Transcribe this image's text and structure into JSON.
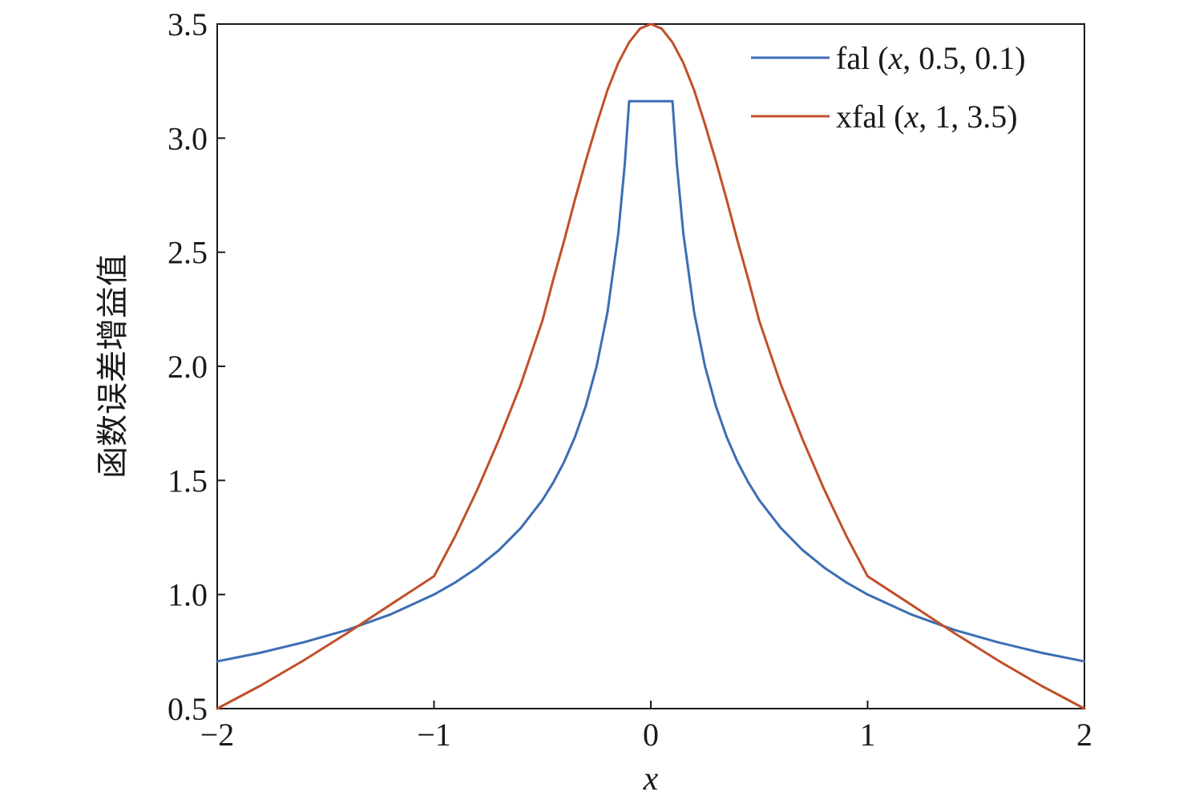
{
  "chart_data": {
    "type": "line",
    "title": "",
    "xlabel": "x",
    "ylabel": "函数误差增益值",
    "xlim": [
      -2,
      2
    ],
    "ylim": [
      0.5,
      3.5
    ],
    "xticks": [
      -2,
      -1,
      0,
      1,
      2
    ],
    "xtick_labels": [
      "−2",
      "−1",
      "0",
      "1",
      "2"
    ],
    "yticks": [
      0.5,
      1.0,
      1.5,
      2.0,
      2.5,
      3.0,
      3.5
    ],
    "ytick_labels": [
      "0.5",
      "1.0",
      "1.5",
      "2.0",
      "2.5",
      "3.0",
      "3.5"
    ],
    "grid": false,
    "legend_position": "top-right",
    "series": [
      {
        "name": "fal (x, 0.5, 0.1)",
        "legend_prefix": "fal (",
        "legend_var": "x",
        "legend_suffix": ", 0.5, 0.1)",
        "color": "#3c6eb4",
        "x": [
          -2.0,
          -1.8,
          -1.6,
          -1.4,
          -1.2,
          -1.0,
          -0.9,
          -0.8,
          -0.7,
          -0.6,
          -0.5,
          -0.45,
          -0.4,
          -0.35,
          -0.3,
          -0.25,
          -0.2,
          -0.15,
          -0.12,
          -0.1,
          0.1,
          0.12,
          0.15,
          0.2,
          0.25,
          0.3,
          0.35,
          0.4,
          0.45,
          0.5,
          0.6,
          0.7,
          0.8,
          0.9,
          1.0,
          1.2,
          1.4,
          1.6,
          1.8,
          2.0
        ],
        "y": [
          0.707,
          0.745,
          0.791,
          0.845,
          0.913,
          1.0,
          1.054,
          1.118,
          1.195,
          1.291,
          1.414,
          1.491,
          1.581,
          1.69,
          1.826,
          2.0,
          2.236,
          2.582,
          2.887,
          3.162,
          3.162,
          2.887,
          2.582,
          2.236,
          2.0,
          1.826,
          1.69,
          1.581,
          1.491,
          1.414,
          1.291,
          1.195,
          1.118,
          1.054,
          1.0,
          0.913,
          0.845,
          0.791,
          0.745,
          0.707
        ]
      },
      {
        "name": "xfal (x, 1, 3.5)",
        "legend_prefix": "xfal (",
        "legend_var": "x",
        "legend_suffix": ", 1, 3.5)",
        "color": "#c0502a",
        "x": [
          -2.0,
          -1.8,
          -1.6,
          -1.4,
          -1.2,
          -1.0,
          -0.9,
          -0.8,
          -0.7,
          -0.6,
          -0.5,
          -0.45,
          -0.4,
          -0.35,
          -0.3,
          -0.25,
          -0.2,
          -0.15,
          -0.1,
          -0.05,
          0.0,
          0.05,
          0.1,
          0.15,
          0.2,
          0.25,
          0.3,
          0.35,
          0.4,
          0.45,
          0.5,
          0.6,
          0.7,
          0.8,
          0.9,
          1.0,
          1.2,
          1.4,
          1.6,
          1.8,
          2.0
        ],
        "y": [
          0.5,
          0.601,
          0.712,
          0.831,
          0.956,
          1.08,
          1.26,
          1.46,
          1.68,
          1.92,
          2.2,
          2.38,
          2.55,
          2.73,
          2.9,
          3.06,
          3.21,
          3.33,
          3.42,
          3.48,
          3.5,
          3.48,
          3.42,
          3.33,
          3.21,
          3.06,
          2.9,
          2.73,
          2.55,
          2.38,
          2.2,
          1.92,
          1.68,
          1.46,
          1.26,
          1.08,
          0.956,
          0.831,
          0.712,
          0.601,
          0.5
        ]
      }
    ]
  }
}
